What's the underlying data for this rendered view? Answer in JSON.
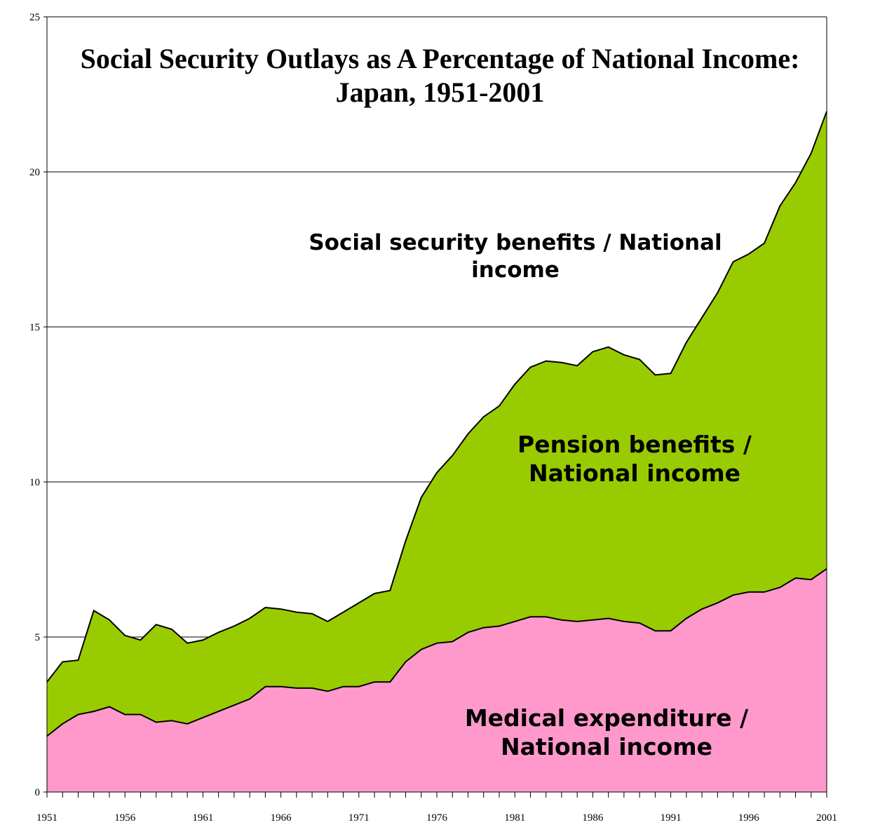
{
  "chart_data": {
    "type": "area",
    "stacked": true,
    "title": "Social Security Outlays as A Percentage of National Income:",
    "subtitle": "Japan, 1951-2001",
    "xlabel": "",
    "ylabel": "",
    "xlim": [
      1951,
      2001
    ],
    "ylim": [
      0,
      25
    ],
    "yticks": [
      0,
      5,
      10,
      15,
      20,
      25
    ],
    "xticks": [
      1951,
      1956,
      1961,
      1966,
      1971,
      1976,
      1981,
      1986,
      1991,
      1996,
      2001
    ],
    "grid": true,
    "x": [
      1951,
      1952,
      1953,
      1954,
      1955,
      1956,
      1957,
      1958,
      1959,
      1960,
      1961,
      1962,
      1963,
      1964,
      1965,
      1966,
      1967,
      1968,
      1969,
      1970,
      1971,
      1972,
      1973,
      1974,
      1975,
      1976,
      1977,
      1978,
      1979,
      1980,
      1981,
      1982,
      1983,
      1984,
      1985,
      1986,
      1987,
      1988,
      1989,
      1990,
      1991,
      1992,
      1993,
      1994,
      1995,
      1996,
      1997,
      1998,
      1999,
      2000,
      2001
    ],
    "series": [
      {
        "name": "Medical expenditure / National income",
        "color": "#ff99cc",
        "values": [
          1.8,
          2.2,
          2.5,
          2.6,
          2.75,
          2.5,
          2.5,
          2.25,
          2.3,
          2.2,
          2.4,
          2.6,
          2.8,
          3.0,
          3.4,
          3.4,
          3.35,
          3.35,
          3.25,
          3.4,
          3.4,
          3.55,
          3.55,
          4.2,
          4.6,
          4.8,
          4.85,
          5.15,
          5.3,
          5.35,
          5.5,
          5.65,
          5.65,
          5.55,
          5.5,
          5.55,
          5.6,
          5.5,
          5.45,
          5.2,
          5.2,
          5.6,
          5.9,
          6.1,
          6.35,
          6.45,
          6.45,
          6.6,
          6.9,
          6.85,
          7.2
        ]
      },
      {
        "name": "Pension benefits / National income",
        "color": "#99cc00",
        "total_values": [
          3.55,
          4.2,
          4.25,
          5.85,
          5.55,
          5.05,
          4.9,
          5.4,
          5.25,
          4.8,
          4.9,
          5.15,
          5.35,
          5.6,
          5.95,
          5.9,
          5.8,
          5.75,
          5.5,
          5.8,
          6.1,
          6.4,
          6.5,
          8.1,
          9.5,
          10.3,
          10.85,
          11.55,
          12.1,
          12.45,
          13.15,
          13.7,
          13.9,
          13.85,
          13.75,
          14.2,
          14.35,
          14.1,
          13.95,
          13.45,
          13.5,
          14.5,
          15.3,
          16.1,
          17.1,
          17.35,
          17.7,
          18.9,
          19.65,
          20.6,
          21.95
        ]
      }
    ],
    "annotations": {
      "total": [
        "Social security benefits / National",
        "income"
      ],
      "pension": [
        "Pension benefits /",
        "National income"
      ],
      "medical": [
        "Medical expenditure /",
        "National income"
      ]
    }
  }
}
